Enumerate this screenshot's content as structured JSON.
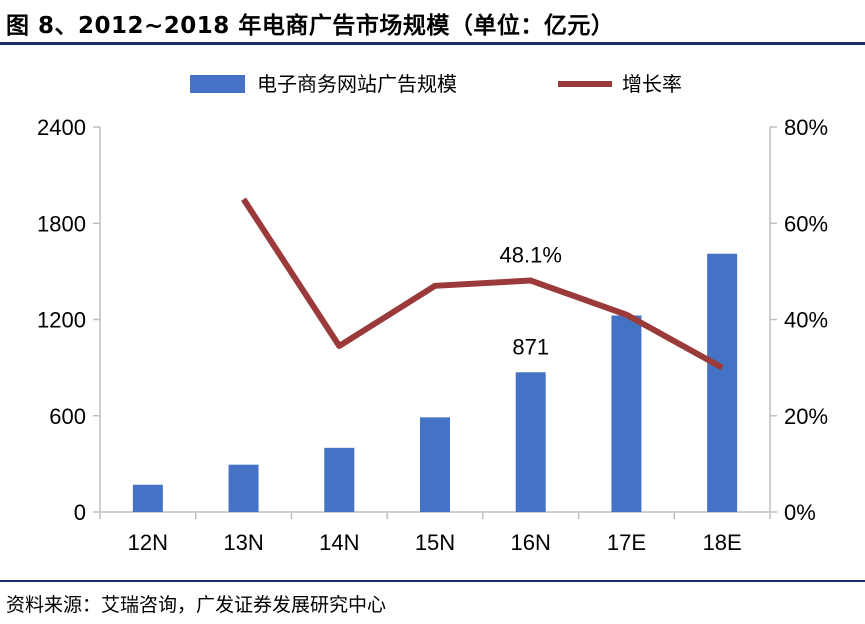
{
  "figure": {
    "title": "图 8、2012~2018 年电商广告市场规模（单位：亿元）",
    "source": "资料来源：艾瑞咨询，广发证券发展研究中心"
  },
  "colors": {
    "bar": "#4472c4",
    "line": "#9b3a3a",
    "rule": "#1f2d6e",
    "axis": "#bfbfbf"
  },
  "chart_data": {
    "type": "bar",
    "title": "图 8、2012~2018 年电商广告市场规模（单位：亿元）",
    "categories": [
      "12N",
      "13N",
      "14N",
      "15N",
      "16N",
      "17E",
      "18E"
    ],
    "series": [
      {
        "name": "电子商务网站广告规模",
        "type": "bar",
        "axis": "left",
        "values": [
          170,
          295,
          400,
          590,
          871,
          1225,
          1610
        ]
      },
      {
        "name": "增长率",
        "type": "line",
        "axis": "right",
        "values": [
          null,
          0.65,
          0.345,
          0.47,
          0.481,
          0.41,
          0.3
        ]
      }
    ],
    "yleft": {
      "ylim": [
        0,
        2400
      ],
      "ticks": [
        "0",
        "600",
        "1200",
        "1800",
        "2400"
      ],
      "tick_values": [
        0,
        600,
        1200,
        1800,
        2400
      ]
    },
    "yright": {
      "ylim": [
        0,
        0.8
      ],
      "ticks": [
        "0%",
        "20%",
        "40%",
        "60%",
        "80%"
      ],
      "tick_values": [
        0,
        0.2,
        0.4,
        0.6,
        0.8
      ]
    },
    "annotations": [
      {
        "text": "871",
        "series": 0,
        "index": 4
      },
      {
        "text": "48.1%",
        "series": 1,
        "index": 4
      }
    ],
    "legend": "top-center",
    "grid": false
  }
}
